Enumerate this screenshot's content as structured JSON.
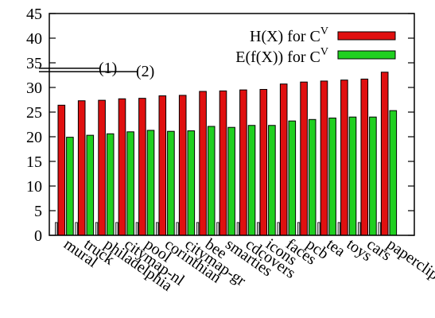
{
  "chart_data": {
    "type": "bar",
    "title": "",
    "xlabel": "",
    "ylabel": "",
    "ylim": [
      0,
      45
    ],
    "yticks": [
      0,
      5,
      10,
      15,
      20,
      25,
      30,
      35,
      40,
      45
    ],
    "grid": false,
    "legend_position": "top-right",
    "categories": [
      "mural",
      "truck",
      "philadelphia",
      "citymap-nl",
      "pool",
      "corinthian",
      "citymap-gr",
      "bee",
      "smarties",
      "cdcovers",
      "icons",
      "faces",
      "pcb",
      "tea",
      "toys",
      "cars",
      "paperclips"
    ],
    "series": [
      {
        "name": "H(X) for C",
        "name_sup": "V",
        "color": "#e01010",
        "values": [
          26.4,
          27.3,
          27.4,
          27.7,
          27.8,
          28.3,
          28.4,
          29.2,
          29.3,
          29.5,
          29.6,
          30.7,
          31.1,
          31.3,
          31.5,
          31.7,
          33.1
        ]
      },
      {
        "name": "E(f(X)) for C",
        "name_sup": "V",
        "color": "#20d020",
        "values": [
          19.9,
          20.3,
          20.6,
          21.0,
          21.3,
          21.1,
          21.2,
          22.1,
          21.9,
          22.3,
          22.3,
          23.2,
          23.5,
          23.8,
          24.0,
          24.0,
          25.3
        ]
      }
    ],
    "base_bar_value": 2.6,
    "reference_lines": [
      {
        "label": "(1)",
        "value": 33.9,
        "x_extent": 0.0
      },
      {
        "label": "(2)",
        "value": 33.2,
        "x_extent": 1.0
      }
    ]
  }
}
